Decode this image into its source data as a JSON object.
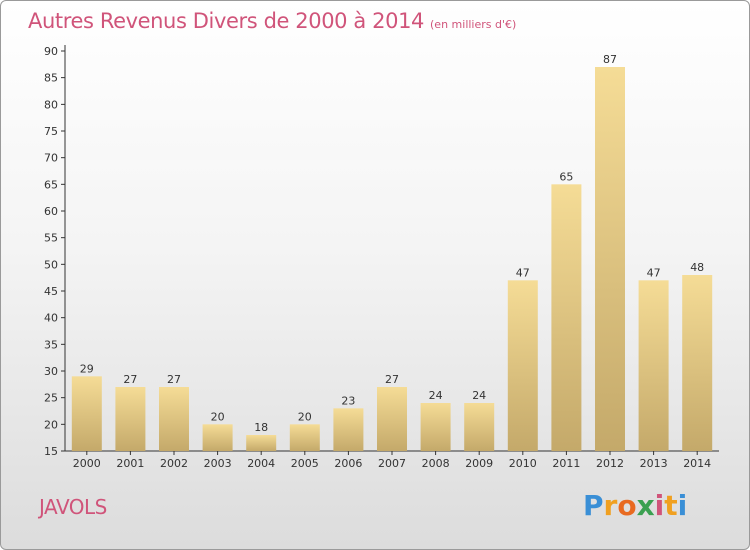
{
  "header": {
    "title": "Autres Revenus Divers de 2000 à 2014",
    "subtitle": "(en milliers d'€)"
  },
  "footer": {
    "place": "JAVOLS",
    "logo_letters": [
      {
        "ch": "P",
        "color": "#3a8fd6"
      },
      {
        "ch": "r",
        "color": "#f0a020"
      },
      {
        "ch": "o",
        "color": "#e86a20"
      },
      {
        "ch": "x",
        "color": "#3aa050"
      },
      {
        "ch": "i",
        "color": "#d0547a"
      },
      {
        "ch": "t",
        "color": "#f0a020"
      },
      {
        "ch": "i",
        "color": "#3a8fd6"
      }
    ]
  },
  "chart_data": {
    "type": "bar",
    "title": "Autres Revenus Divers de 2000 à 2014",
    "subtitle": "(en milliers d'€)",
    "categories": [
      "2000",
      "2001",
      "2002",
      "2003",
      "2004",
      "2005",
      "2006",
      "2007",
      "2008",
      "2009",
      "2010",
      "2011",
      "2012",
      "2013",
      "2014"
    ],
    "values": [
      29,
      27,
      27,
      20,
      18,
      20,
      23,
      27,
      24,
      24,
      47,
      65,
      87,
      47,
      48
    ],
    "ylim": [
      15,
      90
    ],
    "yticks": [
      15,
      20,
      25,
      30,
      35,
      40,
      45,
      50,
      55,
      60,
      65,
      70,
      75,
      80,
      85,
      90
    ],
    "grid": false,
    "bar_color_top": "#f5dc96",
    "bar_color_bottom": "#c4a96a"
  }
}
